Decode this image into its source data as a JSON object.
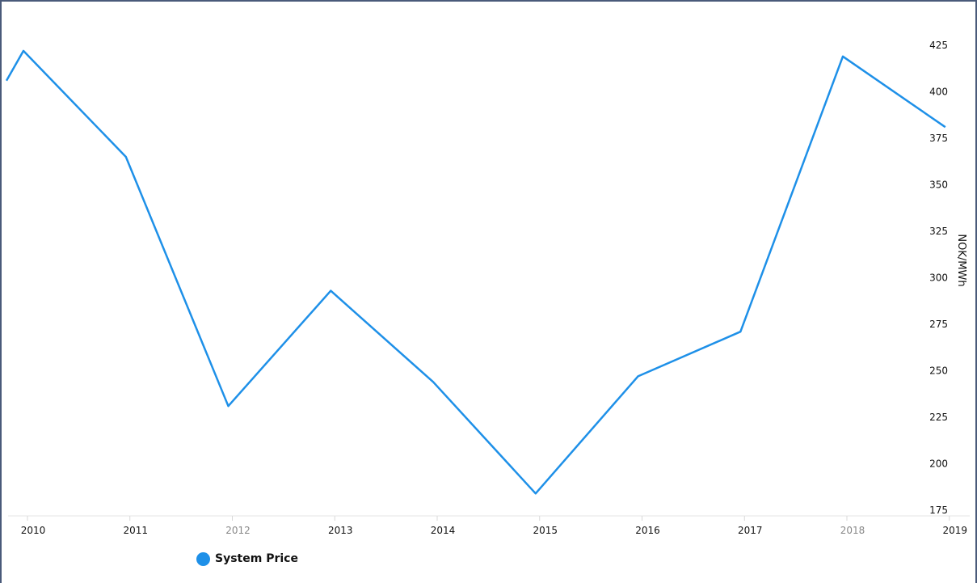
{
  "chart_data": {
    "type": "line",
    "title": "",
    "xlabel": "",
    "ylabel": "NOK/MWh",
    "y_axis_side": "right",
    "x": [
      2009.8,
      2010,
      2011,
      2012,
      2013,
      2014,
      2015,
      2016,
      2017,
      2018,
      2019
    ],
    "x_tick_labels": [
      "2010",
      "2011",
      "2012",
      "2013",
      "2014",
      "2015",
      "2016",
      "2017",
      "2018",
      "2019"
    ],
    "y_ticks": [
      175,
      200,
      225,
      250,
      275,
      300,
      325,
      350,
      375,
      400,
      425
    ],
    "ylim": [
      170,
      440
    ],
    "series": [
      {
        "name": "System Price",
        "color": "#1e90e8",
        "values": [
          406,
          422,
          365,
          231,
          293,
          244,
          184,
          247,
          271,
          419,
          381
        ]
      }
    ],
    "legend": {
      "position": "bottom-left",
      "label": "System Price"
    },
    "grid": false
  }
}
